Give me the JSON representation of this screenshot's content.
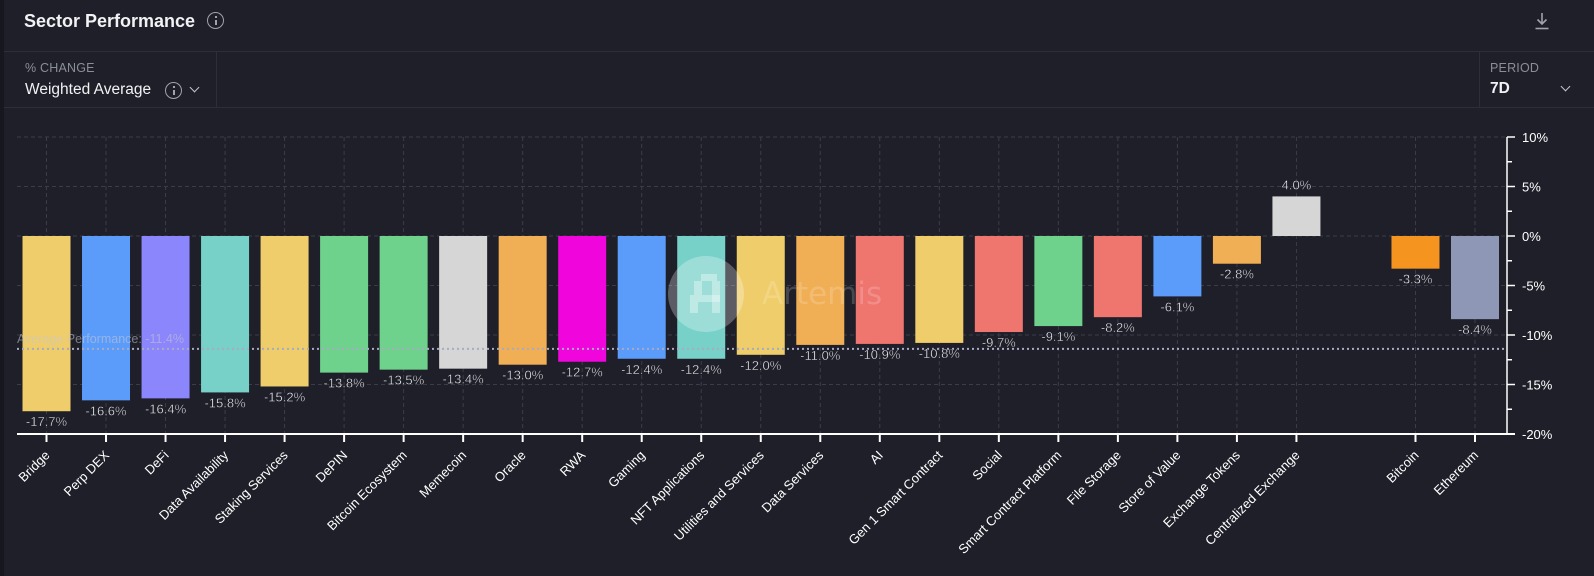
{
  "header": {
    "title": "Sector Performance",
    "info_icon": "info-icon",
    "download_icon": "download-icon"
  },
  "controls": {
    "metric_label": "% CHANGE",
    "metric_value": "Weighted Average",
    "period_label": "PERIOD",
    "period_value": "7D"
  },
  "watermark": "Artemis",
  "chart_data": {
    "type": "bar",
    "title": "Sector Performance",
    "ylabel": "% Change (Weighted Average, 7D)",
    "ylim": [
      -20,
      10
    ],
    "yticks": [
      10,
      5,
      0,
      -5,
      -10,
      -15,
      -20
    ],
    "ytick_labels": [
      "10%",
      "5%",
      "0%",
      "-5%",
      "-10%",
      "-15%",
      "-20%"
    ],
    "grid": true,
    "average_line": {
      "label": "Average Performance: -11.4%",
      "value": -11.4
    },
    "categories": [
      "Bridge",
      "Perp DEX",
      "DeFi",
      "Data Availability",
      "Staking Services",
      "DePIN",
      "Bitcoin Ecosystem",
      "Memecoin",
      "Oracle",
      "RWA",
      "Gaming",
      "NFT Applications",
      "Utilities and Services",
      "Data Services",
      "AI",
      "Gen 1 Smart Contract",
      "Social",
      "Smart Contract Platform",
      "File Storage",
      "Store of Value",
      "Exchange Tokens",
      "Centralized Exchange",
      "",
      "Bitcoin",
      "Ethereum"
    ],
    "values": [
      -17.7,
      -16.6,
      -16.4,
      -15.8,
      -15.2,
      -13.8,
      -13.5,
      -13.4,
      -13.0,
      -12.7,
      -12.4,
      -12.4,
      -12.0,
      -11.0,
      -10.9,
      -10.8,
      -9.7,
      -9.1,
      -8.2,
      -6.1,
      -2.8,
      4.0,
      null,
      -3.3,
      -8.4
    ],
    "value_labels": [
      "-17.7%",
      "-16.6%",
      "-16.4%",
      "-15.8%",
      "-15.2%",
      "-13.8%",
      "-13.5%",
      "-13.4%",
      "-13.0%",
      "-12.7%",
      "-12.4%",
      "-12.4%",
      "-12.0%",
      "-11.0%",
      "-10.9%",
      "-10.8%",
      "-9.7%",
      "-9.1%",
      "-8.2%",
      "-6.1%",
      "-2.8%",
      "4.0%",
      "",
      "-3.3%",
      "-8.4%"
    ],
    "colors": [
      "#efcd6a",
      "#5b9cfb",
      "#8b86fb",
      "#77d1c8",
      "#efcd6a",
      "#6fd28c",
      "#6fd28c",
      "#d6d6d6",
      "#f0ae55",
      "#f005dd",
      "#5b9cfb",
      "#77d1c8",
      "#efcd6a",
      "#f0ae55",
      "#ef756f",
      "#efcd6a",
      "#ef756f",
      "#6fd28c",
      "#ef756f",
      "#5b9cfb",
      "#f0ae55",
      "#d6d6d6",
      "",
      "#f5951f",
      "#8f97b6"
    ]
  }
}
